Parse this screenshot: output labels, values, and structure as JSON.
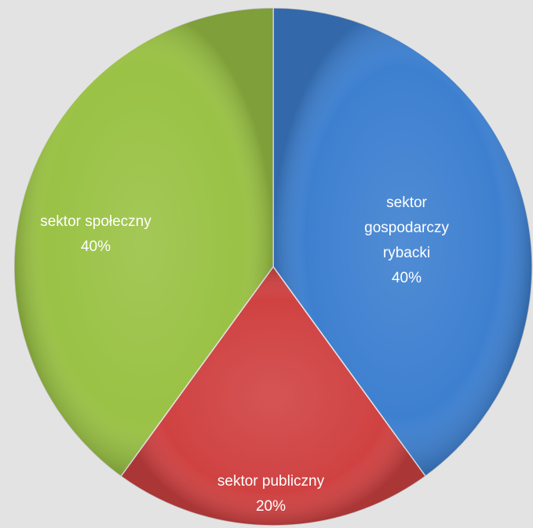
{
  "chart_data": {
    "type": "pie",
    "slices": [
      {
        "label_lines": [
          "sektor",
          "gospodarczy",
          "rybacki"
        ],
        "percent_label": "40%",
        "value": 40,
        "color": "#3e80d0"
      },
      {
        "label_lines": [
          "sektor publiczny"
        ],
        "percent_label": "20%",
        "value": 20,
        "color": "#d04242"
      },
      {
        "label_lines": [
          "sektor społeczny"
        ],
        "percent_label": "40%",
        "value": 40,
        "color": "#9ac245"
      }
    ],
    "start_angle_deg": 0,
    "direction": "clockwise",
    "background": "#e3e3e3"
  }
}
